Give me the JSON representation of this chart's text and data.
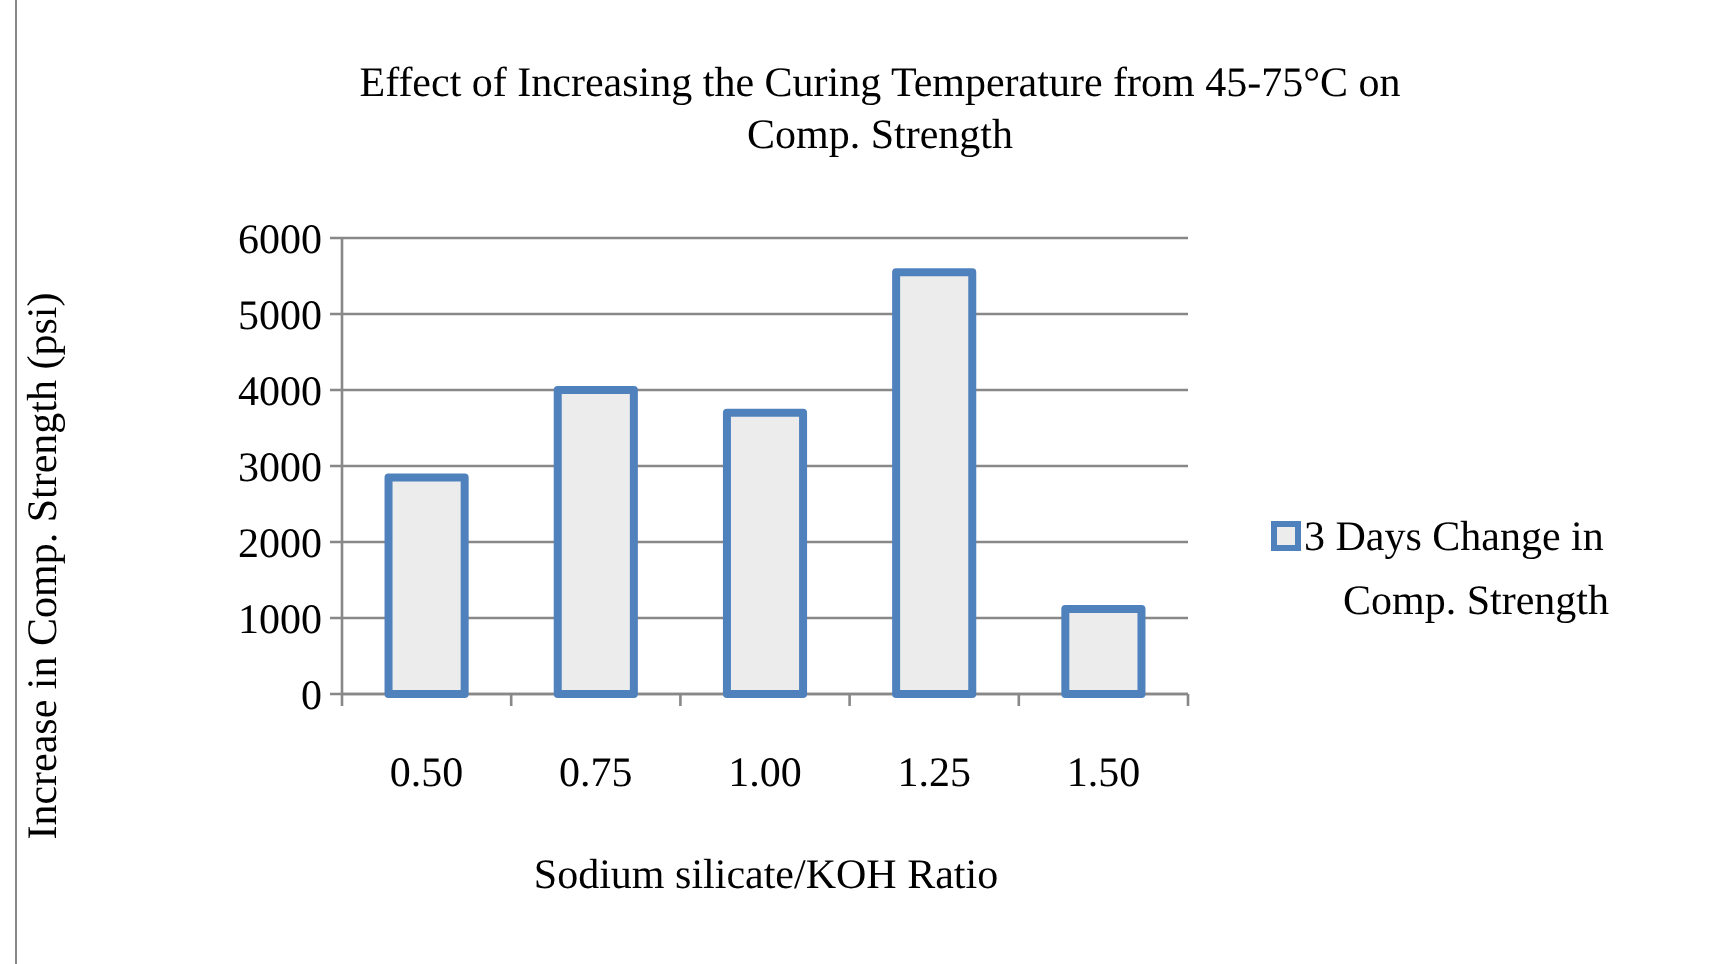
{
  "chart_data": {
    "type": "bar",
    "title": "Effect of Increasing the Curing Temperature from 45-75°C on Comp. Strength",
    "xlabel": "Sodium silicate/KOH Ratio",
    "ylabel": "Increase in Comp. Strength (psi)",
    "categories": [
      "0.50",
      "0.75",
      "1.00",
      "1.25",
      "1.50"
    ],
    "series": [
      {
        "name": "3 Days Change in Comp. Strength",
        "color": "#4f81bd",
        "values": [
          2850,
          4000,
          3700,
          5550,
          1120
        ]
      }
    ],
    "ylim": [
      0,
      6000
    ],
    "yticks": [
      0,
      1000,
      2000,
      3000,
      4000,
      5000,
      6000
    ],
    "grid": "y",
    "legend": "right"
  }
}
